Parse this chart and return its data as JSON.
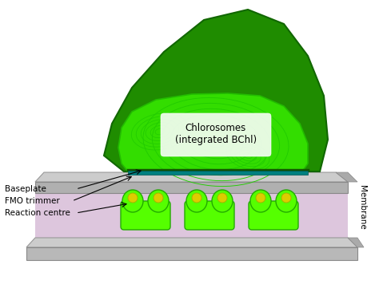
{
  "bg_color": "#ffffff",
  "dark_green": "#1f8c00",
  "medium_green": "#33dd00",
  "light_green": "#55ff00",
  "bright_green": "#99ff33",
  "teal_bar": "#008080",
  "yellow_dot": "#ddcc00",
  "gray_mem": "#b8b8b8",
  "gray_mem_dark": "#999999",
  "purple_hint": "#cc99cc",
  "label_baseplate": "Baseplate",
  "label_fmo": "FMO trimmer",
  "label_reaction": "Reaction centre",
  "label_membrane": "Membrane",
  "label_chlorosome": "Chlorosomes\n(integrated BChl)",
  "spiral_color": "#22cc00",
  "outer_edge": "#116600"
}
